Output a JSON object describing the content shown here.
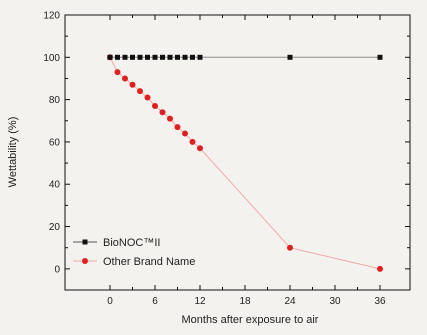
{
  "chart_data": {
    "type": "line",
    "xlabel": "Months after exposure to air",
    "ylabel": "Wettability (%)",
    "xlim": [
      -6,
      40
    ],
    "ylim": [
      -10,
      120
    ],
    "xticks": [
      0,
      6,
      12,
      18,
      24,
      30,
      36
    ],
    "yticks": [
      0,
      20,
      40,
      60,
      80,
      100,
      120
    ],
    "grid": false,
    "legend_position": "bottom-left",
    "series": [
      {
        "name": "BioNOC™II",
        "marker": "square",
        "marker_color": "#111111",
        "line_color": "#8a8a8a",
        "x": [
          0,
          1,
          2,
          3,
          4,
          5,
          6,
          7,
          8,
          9,
          10,
          11,
          12,
          24,
          36
        ],
        "y": [
          100,
          100,
          100,
          100,
          100,
          100,
          100,
          100,
          100,
          100,
          100,
          100,
          100,
          100,
          100
        ]
      },
      {
        "name": "Other Brand Name",
        "marker": "circle",
        "marker_color": "#e02020",
        "line_color": "#f2aaaa",
        "x": [
          0,
          1,
          2,
          3,
          4,
          5,
          6,
          7,
          8,
          9,
          10,
          11,
          12,
          24,
          36
        ],
        "y": [
          100,
          93,
          90,
          87,
          84,
          81,
          77,
          74,
          71,
          67,
          64,
          60,
          57,
          10,
          0
        ]
      }
    ]
  }
}
